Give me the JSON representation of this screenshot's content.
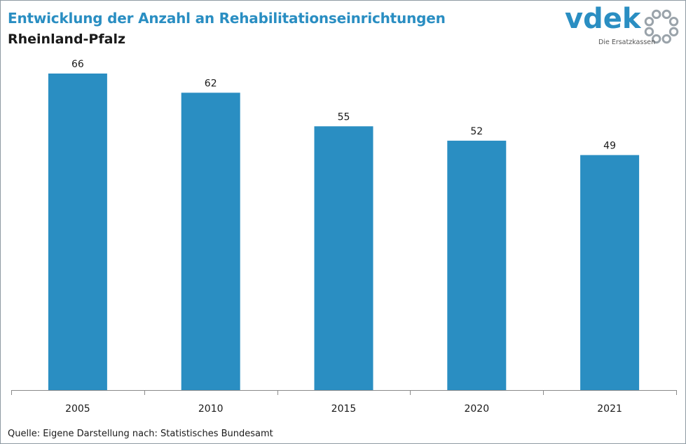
{
  "header": {
    "title": "Entwicklung der Anzahl an Rehabilitationseinrichtungen",
    "subtitle": "Rheinland-Pfalz"
  },
  "logo": {
    "wordmark": "vdek",
    "tagline": "Die Ersatzkassen",
    "brand_color": "#2a8ec2",
    "ring_color": "#9aa3aa"
  },
  "footer": {
    "source": "Quelle: Eigene Darstellung nach: Statistisches Bundesamt"
  },
  "chart_data": {
    "type": "bar",
    "categories": [
      "2005",
      "2010",
      "2015",
      "2020",
      "2021"
    ],
    "values": [
      66,
      62,
      55,
      52,
      49
    ],
    "data_labels": [
      "66",
      "62",
      "55",
      "52",
      "49"
    ],
    "ylim": [
      0,
      66
    ],
    "grid": false,
    "legend": "none",
    "bar_color": "#2a8ec2"
  }
}
